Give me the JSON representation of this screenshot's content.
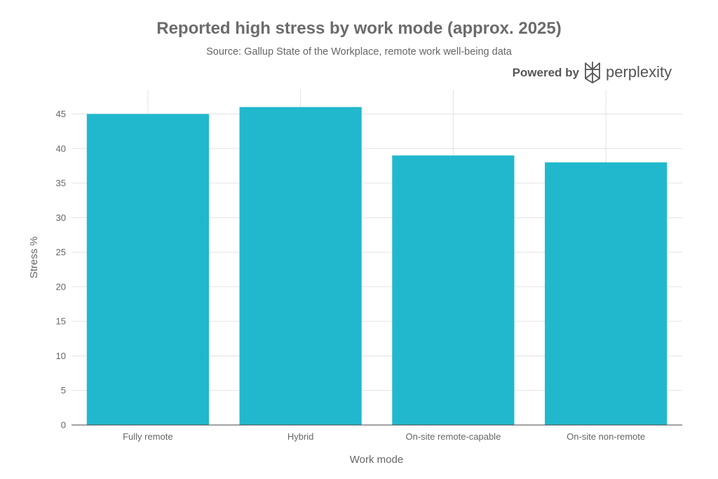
{
  "chart_data": {
    "type": "bar",
    "title": "Reported high stress by work mode (approx. 2025)",
    "subtitle": "Source: Gallup State of the Workplace, remote work well-being data",
    "categories": [
      "Fully remote",
      "Hybrid",
      "On-site remote-capable",
      "On-site non-remote"
    ],
    "values": [
      45,
      46,
      39,
      38
    ],
    "xlabel": "Work mode",
    "ylabel": "Stress %",
    "ylim": [
      0,
      48.5
    ],
    "yticks": [
      0,
      5,
      10,
      15,
      20,
      25,
      30,
      35,
      40,
      45
    ],
    "grid": true,
    "bar_color": "#21b8cd"
  },
  "branding": {
    "powered_by": "Powered by",
    "name": "perplexity",
    "logo_icon": "perplexity-logo-icon"
  }
}
